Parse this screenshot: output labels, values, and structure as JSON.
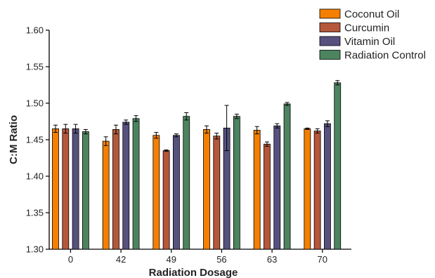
{
  "chart_data": {
    "type": "bar",
    "xlabel": "Radiation Dosage",
    "ylabel": "C:M Ratio",
    "ylim": [
      1.3,
      1.6
    ],
    "yticks": [
      "1.30",
      "1.35",
      "1.40",
      "1.45",
      "1.50",
      "1.55",
      "1.60"
    ],
    "categories": [
      "0",
      "42",
      "49",
      "56",
      "63",
      "70"
    ],
    "error_bars": true,
    "legend_position": "top-right",
    "series": [
      {
        "name": "Coconut Oil",
        "color": "#f57f00",
        "values": [
          1.465,
          1.448,
          1.456,
          1.464,
          1.463,
          1.465
        ],
        "errors": [
          0.005,
          0.006,
          0.004,
          0.005,
          0.005,
          0.001
        ]
      },
      {
        "name": "Curcumin",
        "color": "#b5573a",
        "values": [
          1.465,
          1.464,
          1.435,
          1.455,
          1.444,
          1.462
        ],
        "errors": [
          0.006,
          0.006,
          0.001,
          0.004,
          0.003,
          0.003
        ]
      },
      {
        "name": "Vitamin Oil",
        "color": "#56517e",
        "values": [
          1.465,
          1.474,
          1.456,
          1.466,
          1.469,
          1.472
        ],
        "errors": [
          0.006,
          0.003,
          0.002,
          0.031,
          0.003,
          0.004
        ]
      },
      {
        "name": "Radiation Control",
        "color": "#4d8460",
        "values": [
          1.461,
          1.479,
          1.482,
          1.482,
          1.499,
          1.528
        ],
        "errors": [
          0.003,
          0.004,
          0.005,
          0.003,
          0.002,
          0.003
        ]
      }
    ]
  }
}
